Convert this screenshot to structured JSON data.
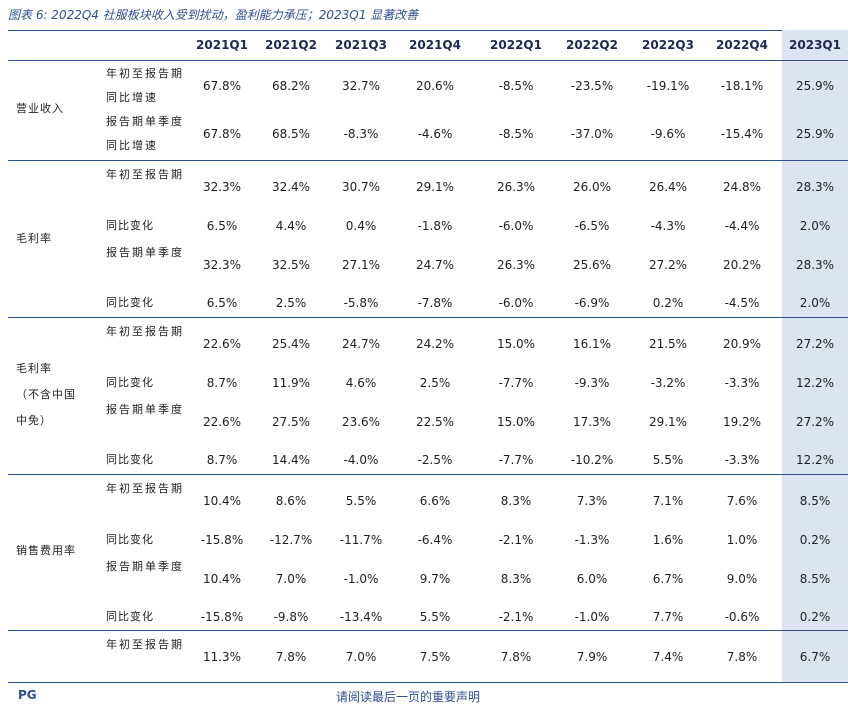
{
  "title": "图表 6:  2022Q4 社服板块收入受到扰动，盈利能力承压；2023Q1 显著改善",
  "columns": [
    "2021Q1",
    "2021Q2",
    "2021Q3",
    "2021Q4",
    "2022Q1",
    "2022Q2",
    "2022Q3",
    "2022Q4",
    "2023Q1"
  ],
  "groups": [
    {
      "category": "营业收入",
      "rows": [
        {
          "metric": "年初至报告期同比增速",
          "values": [
            "67.8%",
            "68.2%",
            "32.7%",
            "20.6%",
            "-8.5%",
            "-23.5%",
            "-19.1%",
            "-18.1%",
            "25.9%"
          ]
        },
        {
          "metric": "报告期单季度同比增速",
          "values": [
            "67.8%",
            "68.5%",
            "-8.3%",
            "-4.6%",
            "-8.5%",
            "-37.0%",
            "-9.6%",
            "-15.4%",
            "25.9%"
          ]
        }
      ]
    },
    {
      "category": "毛利率",
      "rows": [
        {
          "metric": "年初至报告期",
          "values": [
            "32.3%",
            "32.4%",
            "30.7%",
            "29.1%",
            "26.3%",
            "26.0%",
            "26.4%",
            "24.8%",
            "28.3%"
          ]
        },
        {
          "metric": "同比变化",
          "values": [
            "6.5%",
            "4.4%",
            "0.4%",
            "-1.8%",
            "-6.0%",
            "-6.5%",
            "-4.3%",
            "-4.4%",
            "2.0%"
          ]
        },
        {
          "metric": "报告期单季度",
          "values": [
            "32.3%",
            "32.5%",
            "27.1%",
            "24.7%",
            "26.3%",
            "25.6%",
            "27.2%",
            "20.2%",
            "28.3%"
          ]
        },
        {
          "metric": "同比变化",
          "values": [
            "6.5%",
            "2.5%",
            "-5.8%",
            "-7.8%",
            "-6.0%",
            "-6.9%",
            "0.2%",
            "-4.5%",
            "2.0%"
          ]
        }
      ]
    },
    {
      "category": "毛利率\n（不含中国\n中免）",
      "rows": [
        {
          "metric": "年初至报告期",
          "values": [
            "22.6%",
            "25.4%",
            "24.7%",
            "24.2%",
            "15.0%",
            "16.1%",
            "21.5%",
            "20.9%",
            "27.2%"
          ]
        },
        {
          "metric": "同比变化",
          "values": [
            "8.7%",
            "11.9%",
            "4.6%",
            "2.5%",
            "-7.7%",
            "-9.3%",
            "-3.2%",
            "-3.3%",
            "12.2%"
          ]
        },
        {
          "metric": "报告期单季度",
          "values": [
            "22.6%",
            "27.5%",
            "23.6%",
            "22.5%",
            "15.0%",
            "17.3%",
            "29.1%",
            "19.2%",
            "27.2%"
          ]
        },
        {
          "metric": "同比变化",
          "values": [
            "8.7%",
            "14.4%",
            "-4.0%",
            "-2.5%",
            "-7.7%",
            "-10.2%",
            "5.5%",
            "-3.3%",
            "12.2%"
          ]
        }
      ]
    },
    {
      "category": "销售费用率",
      "rows": [
        {
          "metric": "年初至报告期",
          "values": [
            "10.4%",
            "8.6%",
            "5.5%",
            "6.6%",
            "8.3%",
            "7.3%",
            "7.1%",
            "7.6%",
            "8.5%"
          ]
        },
        {
          "metric": "同比变化",
          "values": [
            "-15.8%",
            "-12.7%",
            "-11.7%",
            "-6.4%",
            "-2.1%",
            "-1.3%",
            "1.6%",
            "1.0%",
            "0.2%"
          ]
        },
        {
          "metric": "报告期单季度",
          "values": [
            "10.4%",
            "7.0%",
            "-1.0%",
            "9.7%",
            "8.3%",
            "6.0%",
            "6.7%",
            "9.0%",
            "8.5%"
          ]
        },
        {
          "metric": "同比变化",
          "values": [
            "-15.8%",
            "-9.8%",
            "-13.4%",
            "5.5%",
            "-2.1%",
            "-1.0%",
            "7.7%",
            "-0.6%",
            "0.2%"
          ]
        }
      ]
    },
    {
      "category": "",
      "rows": [
        {
          "metric": "年初至报告期",
          "values": [
            "11.3%",
            "7.8%",
            "7.0%",
            "7.5%",
            "7.8%",
            "7.9%",
            "7.4%",
            "7.8%",
            "6.7%"
          ]
        }
      ]
    }
  ],
  "footer": {
    "logo": "PG",
    "note": "请阅读最后一页的重要声明"
  },
  "colors": {
    "accent": "#2f4f8f",
    "highlight_column": "#dce3f1"
  }
}
